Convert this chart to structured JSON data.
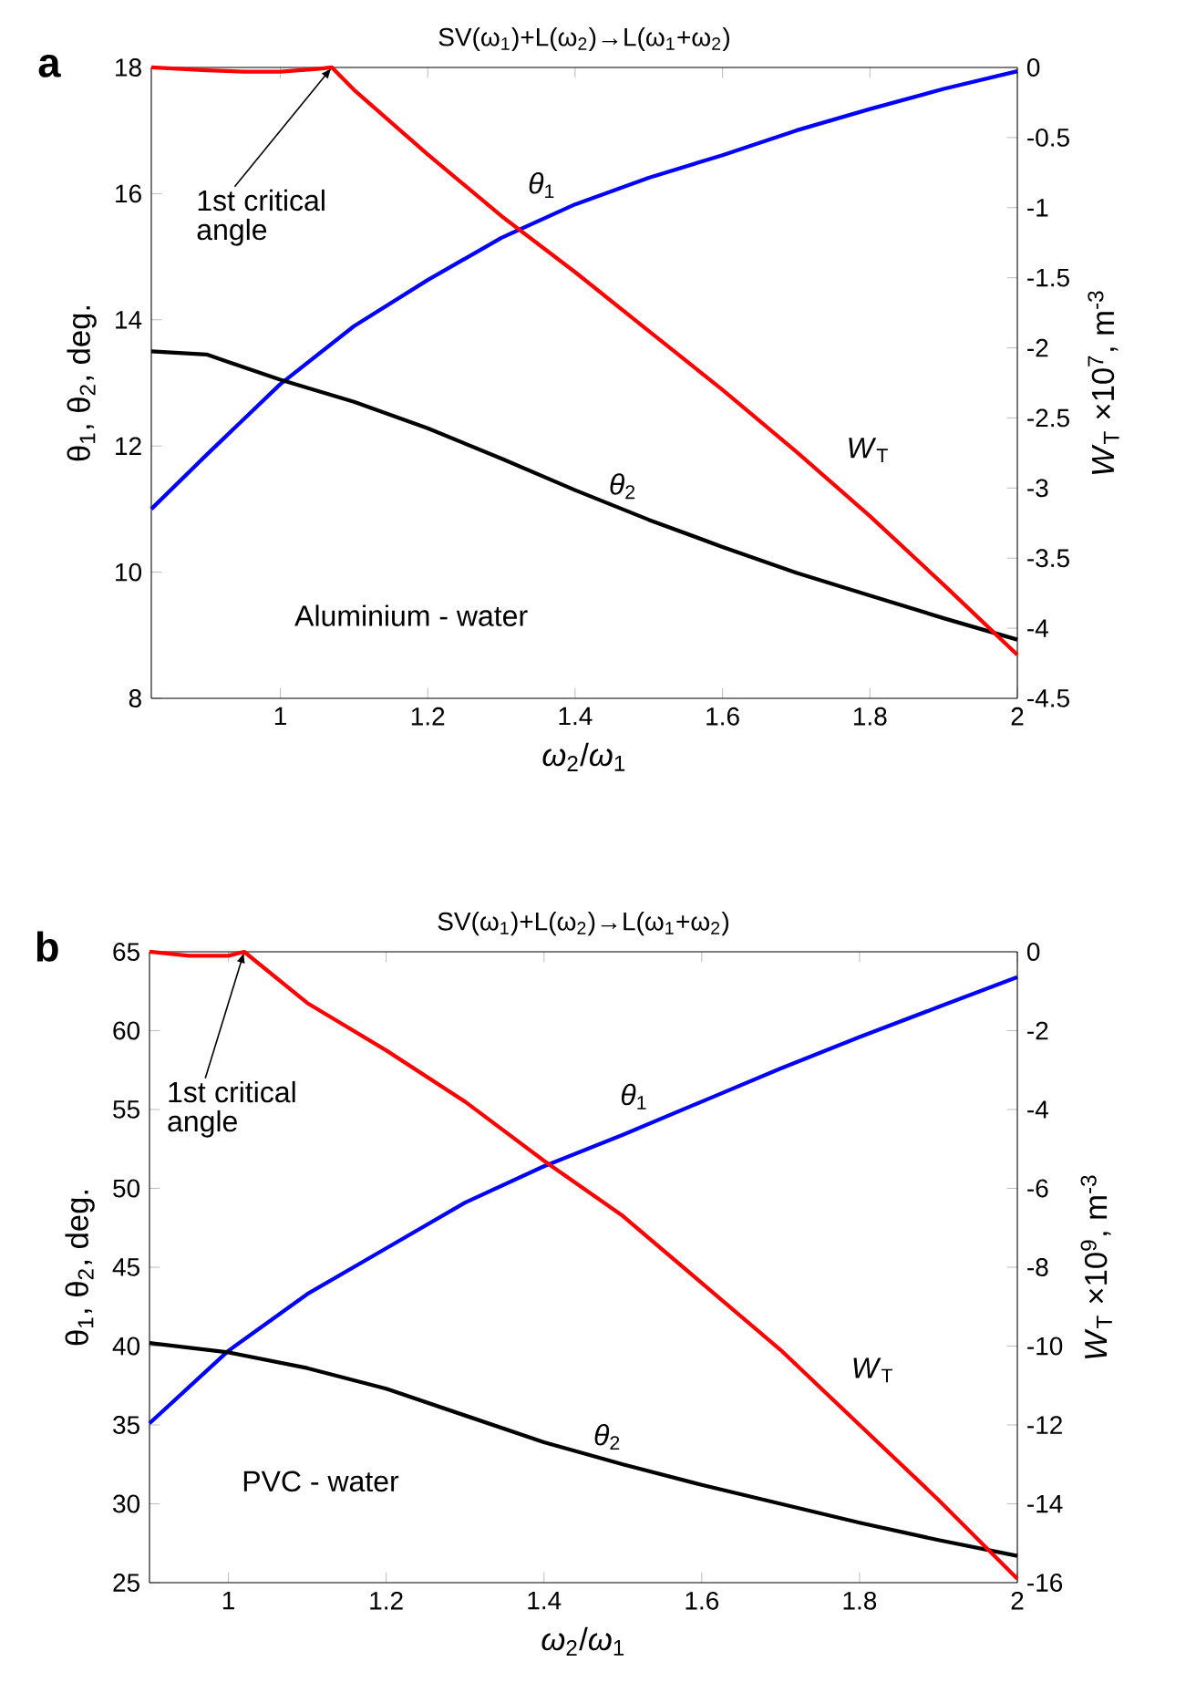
{
  "chart_data": [
    {
      "type": "line",
      "title": "SV(ω$_{1}$)+L(ω$_{2}$)→L(ω$_{1}$+ω$_{2}$)",
      "xlabel": "*ω*$_{2}$/*ω*$_{1}$",
      "ylabel": "θ$_{1}$, θ$_{2}$, deg.",
      "y2label": "*W*$_{T}$ ×10$^{7}$, m$^{-3}$",
      "xlim": [
        0.825,
        2
      ],
      "xticks": [
        1,
        1.2,
        1.4,
        1.6,
        1.8,
        2
      ],
      "ylim": [
        8,
        18
      ],
      "yticks": [
        8,
        10,
        12,
        14,
        16,
        18
      ],
      "y2lim": [
        -4.5,
        0
      ],
      "y2ticks": [
        -4.5,
        -4,
        -3.5,
        -3,
        -2.5,
        -2,
        -1.5,
        -1,
        -0.5,
        0
      ],
      "series": [
        {
          "name": "*θ*$_{1}$",
          "color": "#0000ff",
          "x": [
            0.825,
            0.9,
            1,
            1.1,
            1.2,
            1.3,
            1.4,
            1.5,
            1.6,
            1.7,
            1.8,
            1.9,
            2
          ],
          "values": [
            11,
            11.86,
            12.98,
            13.9,
            14.63,
            15.3,
            15.83,
            16.25,
            16.61,
            17.0,
            17.34,
            17.66,
            17.94
          ]
        },
        {
          "name": "*θ*$_{2}$",
          "color": "#000000",
          "x": [
            0.825,
            0.9,
            1,
            1.1,
            1.2,
            1.3,
            1.4,
            1.5,
            1.6,
            1.7,
            1.8,
            1.9,
            2
          ],
          "values": [
            13.5,
            13.45,
            13.05,
            12.7,
            12.28,
            11.8,
            11.3,
            10.83,
            10.4,
            9.99,
            9.63,
            9.27,
            8.93
          ]
        },
        {
          "name": "*W*$_{T}$",
          "color": "#ff0000",
          "axis": "y2",
          "x": [
            0.825,
            0.9,
            0.95,
            1.0,
            1.05,
            1.07,
            1.1,
            1.2,
            1.3,
            1.4,
            1.5,
            1.6,
            1.7,
            1.8,
            1.9,
            2.0
          ],
          "values": [
            0,
            -0.02,
            -0.03,
            -0.03,
            -0.01,
            0,
            -0.16,
            -0.62,
            -1.06,
            -1.46,
            -1.88,
            -2.3,
            -2.74,
            -3.2,
            -3.69,
            -4.19
          ]
        }
      ],
      "annotations": [
        "a",
        "Aluminium - water",
        {
          "text": "1st critical angle",
          "x": 1.07,
          "y": 18
        }
      ]
    },
    {
      "type": "line",
      "title": "SV(ω$_{1}$)+L(ω$_{2}$)→L(ω$_{1}$+ω$_{2}$)",
      "xlabel": "*ω*$_{2}$/*ω*$_{1}$",
      "ylabel": "θ$_{1}$, θ$_{2}$, deg.",
      "y2label": "*W*$_{T}$ ×10$^{9}$, m$^{-3}$",
      "xlim": [
        0.9,
        2
      ],
      "xticks": [
        1,
        1.2,
        1.4,
        1.6,
        1.8,
        2
      ],
      "ylim": [
        25,
        65
      ],
      "yticks": [
        25,
        30,
        35,
        40,
        45,
        50,
        55,
        60,
        65
      ],
      "y2lim": [
        -16,
        0
      ],
      "y2ticks": [
        -16,
        -14,
        -12,
        -10,
        -8,
        -6,
        -4,
        -2,
        0
      ],
      "series": [
        {
          "name": "*θ*$_{1}$",
          "color": "#0000ff",
          "x": [
            0.9,
            1,
            1.1,
            1.2,
            1.3,
            1.4,
            1.5,
            1.6,
            1.7,
            1.8,
            1.9,
            2
          ],
          "values": [
            35.1,
            39.7,
            43.3,
            46.2,
            49.1,
            51.4,
            53.4,
            55.5,
            57.6,
            59.6,
            61.5,
            63.4
          ]
        },
        {
          "name": "*θ*$_{2}$",
          "color": "#000000",
          "x": [
            0.9,
            1,
            1.1,
            1.2,
            1.3,
            1.4,
            1.5,
            1.6,
            1.7,
            1.8,
            1.9,
            2
          ],
          "values": [
            40.2,
            39.6,
            38.6,
            37.3,
            35.6,
            33.9,
            32.5,
            31.2,
            30.0,
            28.8,
            27.7,
            26.7
          ]
        },
        {
          "name": "*W*$_{T}$",
          "color": "#ff0000",
          "axis": "y2",
          "x": [
            0.9,
            0.95,
            1.0,
            1.02,
            1.1,
            1.2,
            1.3,
            1.4,
            1.5,
            1.6,
            1.7,
            1.8,
            1.9,
            2.0
          ],
          "values": [
            0,
            -0.1,
            -0.1,
            0,
            -1.3,
            -2.5,
            -3.8,
            -5.3,
            -6.7,
            -8.4,
            -10.1,
            -12.0,
            -13.9,
            -15.9
          ]
        }
      ],
      "annotations": [
        "b",
        "PVC - water",
        {
          "text": "1st critical angle",
          "x": 1.02,
          "y": 65
        }
      ]
    }
  ]
}
